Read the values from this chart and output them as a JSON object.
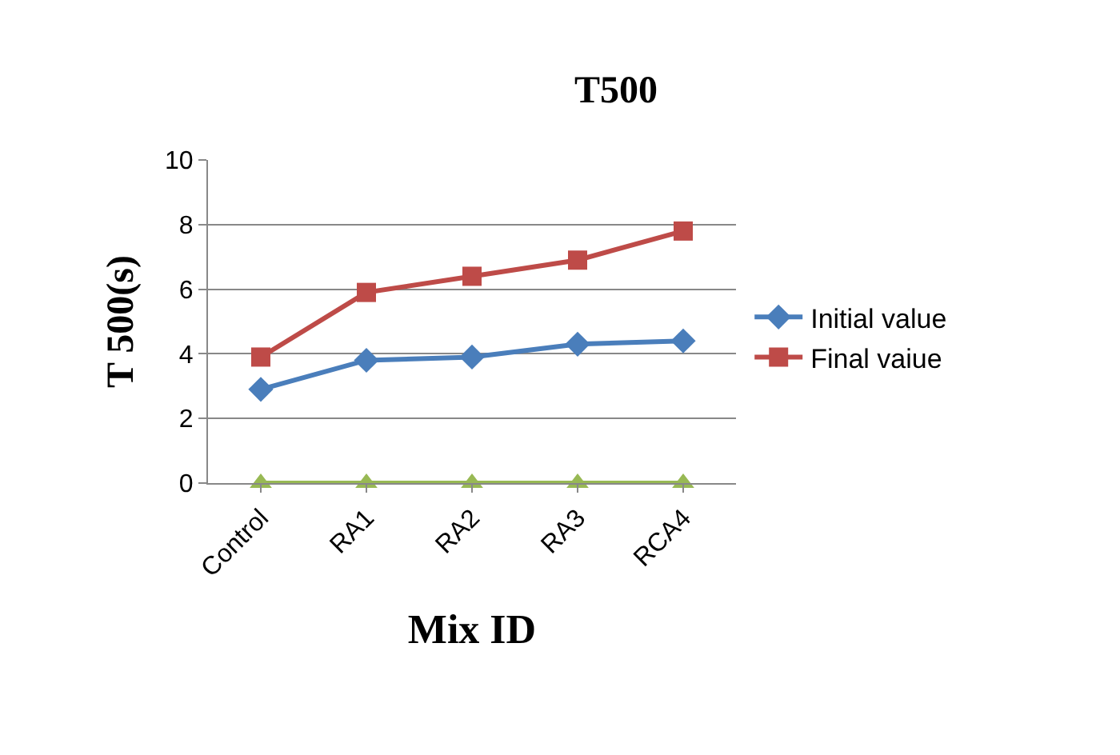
{
  "chart_data": {
    "type": "line",
    "title": "T500",
    "xlabel": "Mix ID",
    "ylabel": "T 500(s)",
    "categories": [
      "Control",
      "RA1",
      "RA2",
      "RA3",
      "RCA4"
    ],
    "series": [
      {
        "name": "Initial value",
        "color": "#4a7ebb",
        "values": [
          2.9,
          3.8,
          3.9,
          4.3,
          4.4
        ],
        "marker": "diamond"
      },
      {
        "name": "Final vaiue",
        "color": "#be4b48",
        "values": [
          3.9,
          5.9,
          6.4,
          6.9,
          7.8
        ],
        "marker": "square"
      },
      {
        "color": "#98b954",
        "values": [
          0,
          0,
          0,
          0,
          0
        ],
        "marker": "triangle"
      }
    ],
    "ylim": [
      0,
      10
    ],
    "yticks": [
      0,
      2,
      4,
      6,
      8,
      10
    ],
    "grid": "y",
    "legend": "right"
  }
}
